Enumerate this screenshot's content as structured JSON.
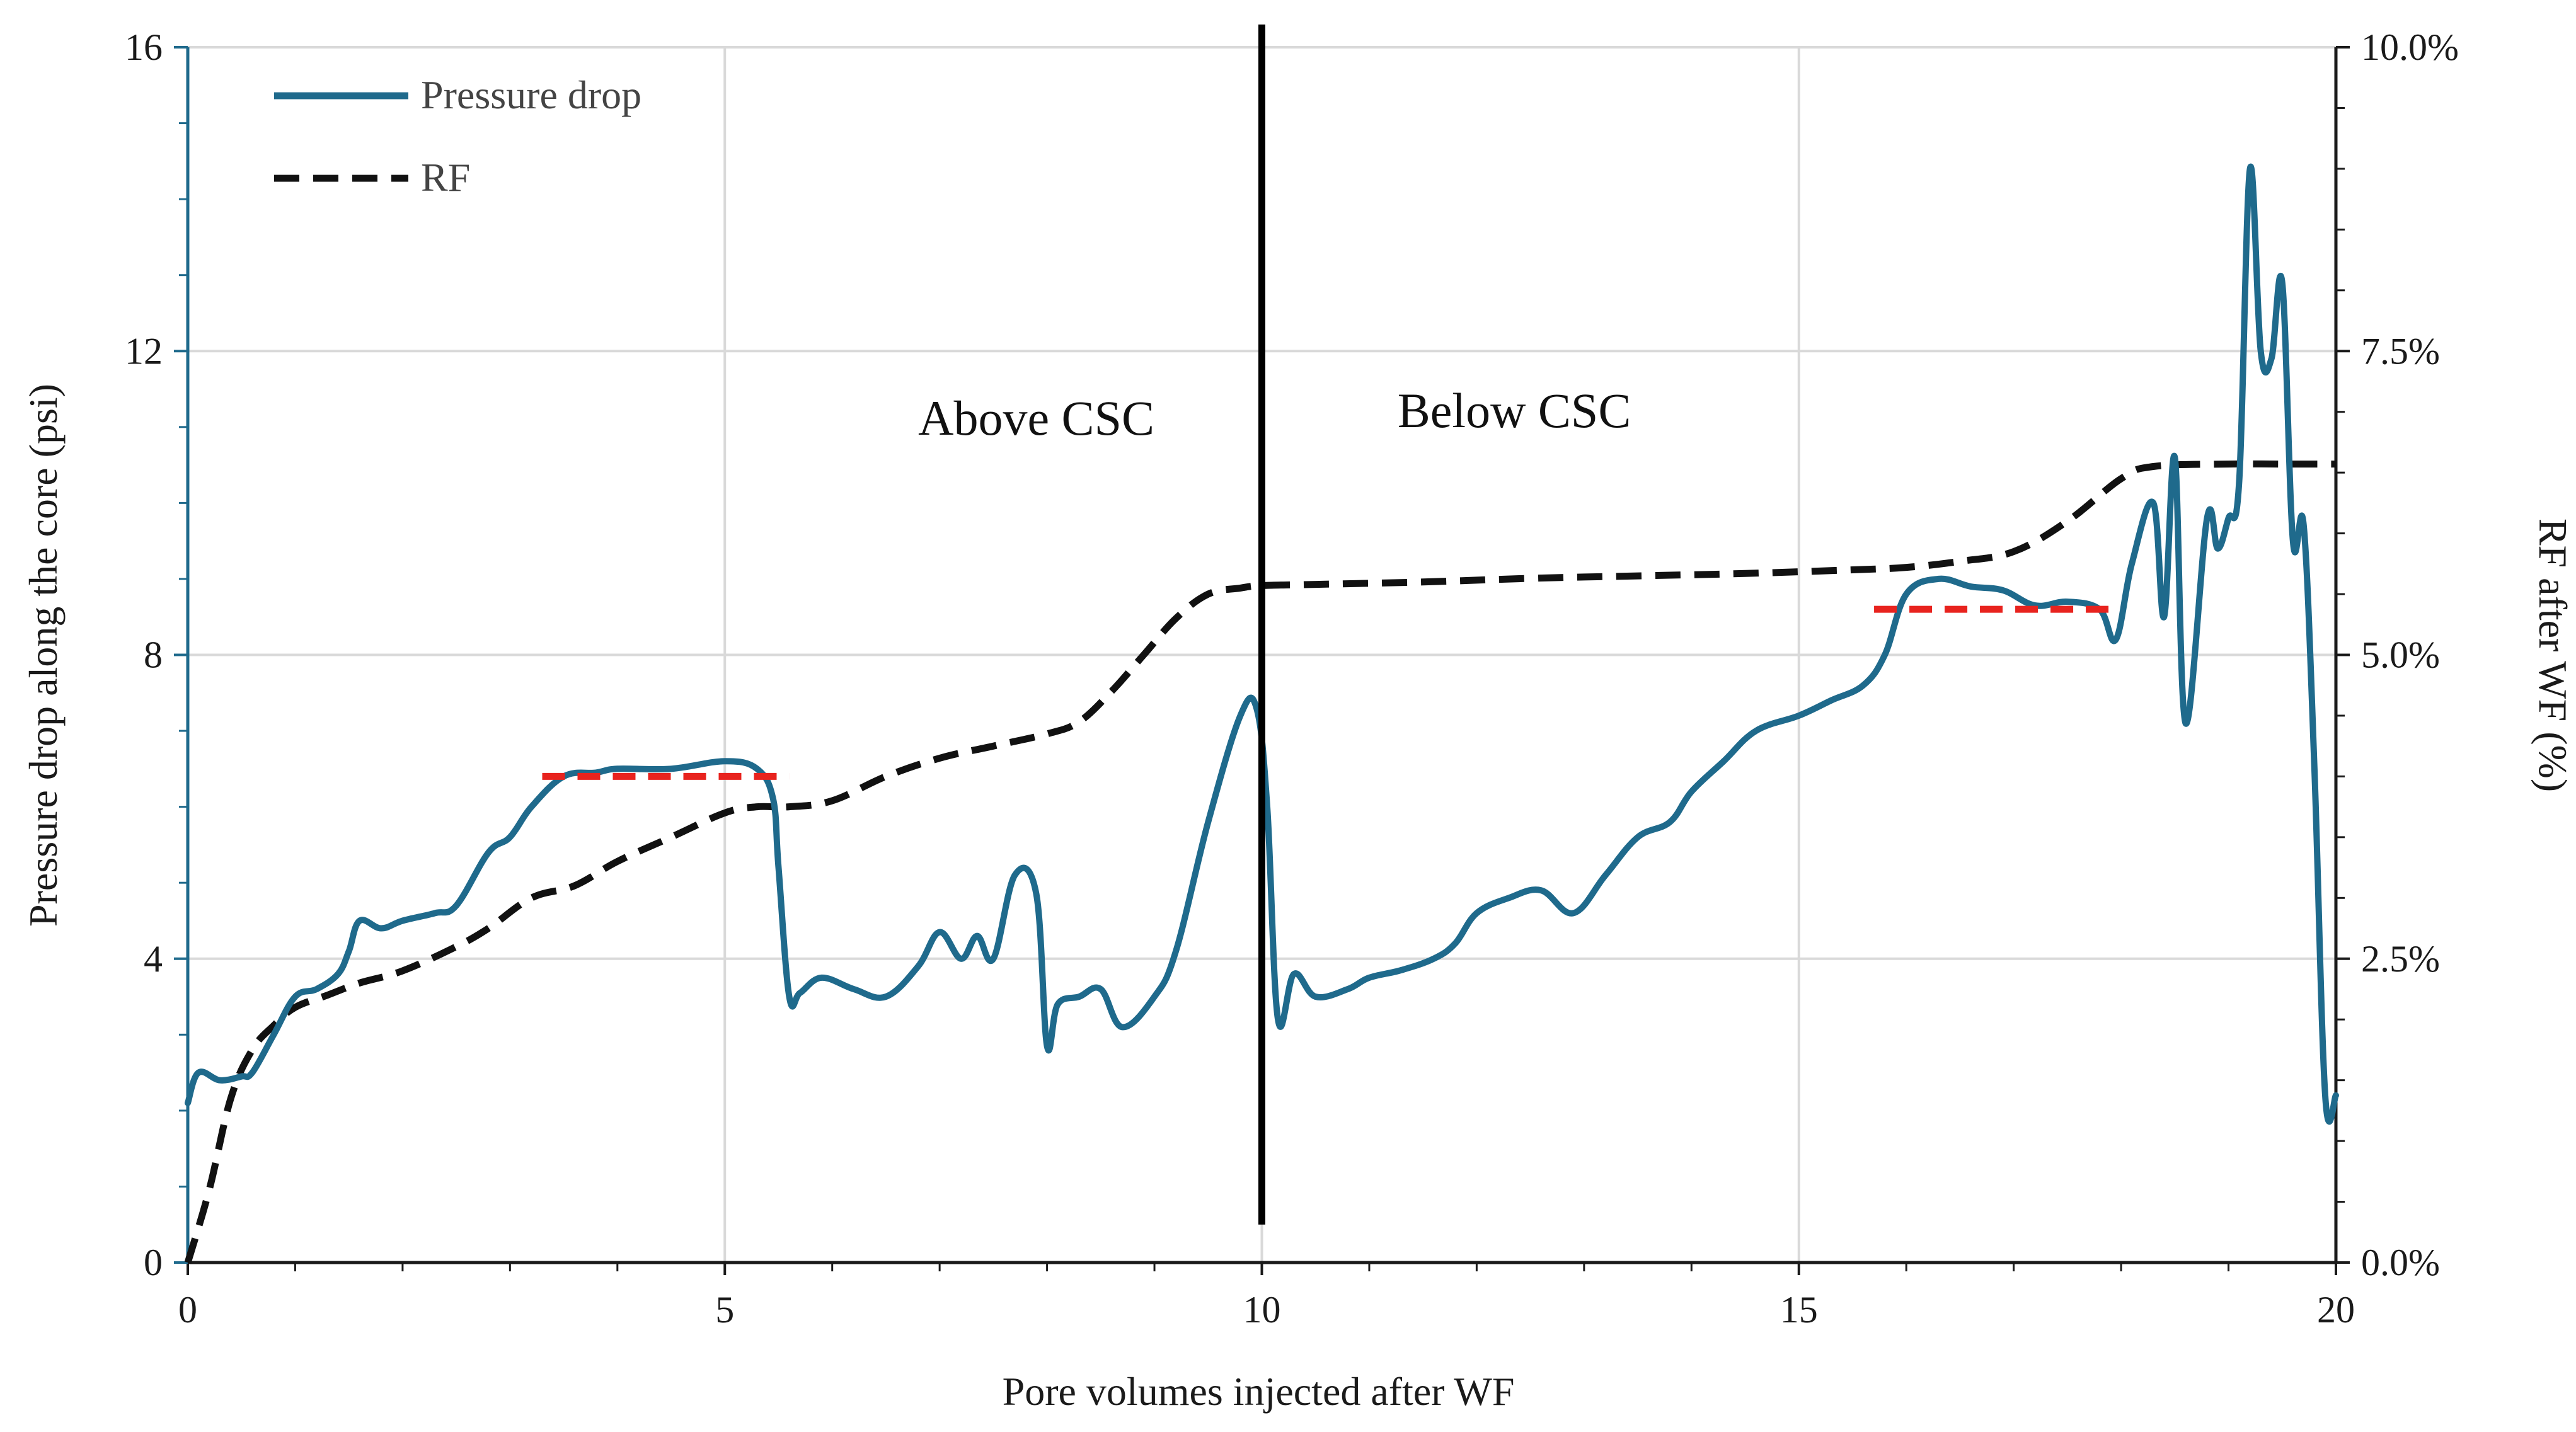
{
  "chart_data": {
    "type": "line",
    "title": "",
    "xlabel": "Pore volumes injected after WF",
    "ylabel_left": "Pressure drop along the core (psi)",
    "ylabel_right": "RF after WF (%)",
    "xlim": [
      0,
      20
    ],
    "ylim_left": [
      0,
      16
    ],
    "ylim_right": [
      0,
      10
    ],
    "x_ticks": [
      0,
      5,
      10,
      15,
      20
    ],
    "y_ticks_left": [
      0,
      4,
      8,
      12,
      16
    ],
    "y_ticks_right": [
      "0.0%",
      "2.5%",
      "5.0%",
      "7.5%",
      "10.0%"
    ],
    "y_ticks_right_values": [
      0,
      2.5,
      5,
      7.5,
      10
    ],
    "grid": true,
    "legend_position": "top-left",
    "colors": {
      "pressure": "#1f6a8c",
      "rf": "#111111",
      "plateau": "#e8231e",
      "divider": "#000000",
      "grid": "#d9d9d9"
    },
    "series": [
      {
        "name": "Pressure drop",
        "axis": "left",
        "style": "solid",
        "x": [
          0,
          0.1,
          0.3,
          0.5,
          0.6,
          0.8,
          1.0,
          1.2,
          1.4,
          1.5,
          1.6,
          1.8,
          2.0,
          2.3,
          2.5,
          2.8,
          3.0,
          3.2,
          3.5,
          3.8,
          4.0,
          4.5,
          5.0,
          5.3,
          5.45,
          5.5,
          5.6,
          5.7,
          5.9,
          6.2,
          6.5,
          6.8,
          7.0,
          7.2,
          7.35,
          7.5,
          7.7,
          7.9,
          8.0,
          8.1,
          8.3,
          8.5,
          8.7,
          9.0,
          9.2,
          9.5,
          9.8,
          9.95,
          10.05,
          10.15,
          10.3,
          10.5,
          10.8,
          11.0,
          11.3,
          11.6,
          11.8,
          12.0,
          12.3,
          12.6,
          12.9,
          13.2,
          13.5,
          13.8,
          14.0,
          14.3,
          14.6,
          15.0,
          15.3,
          15.6,
          15.8,
          16.0,
          16.3,
          16.6,
          16.9,
          17.2,
          17.5,
          17.8,
          17.95,
          18.1,
          18.3,
          18.4,
          18.5,
          18.6,
          18.8,
          18.9,
          19.0,
          19.1,
          19.2,
          19.3,
          19.4,
          19.5,
          19.6,
          19.7,
          19.8,
          19.9,
          20.0
        ],
        "values": [
          2.1,
          2.5,
          2.4,
          2.45,
          2.5,
          3.0,
          3.5,
          3.6,
          3.8,
          4.1,
          4.5,
          4.4,
          4.5,
          4.6,
          4.7,
          5.4,
          5.6,
          6.0,
          6.4,
          6.45,
          6.5,
          6.5,
          6.6,
          6.5,
          6.1,
          5.2,
          3.5,
          3.55,
          3.75,
          3.6,
          3.5,
          3.9,
          4.35,
          4.0,
          4.3,
          4.0,
          5.1,
          4.85,
          2.85,
          3.4,
          3.5,
          3.6,
          3.1,
          3.5,
          4.1,
          5.8,
          7.2,
          7.3,
          6.0,
          3.2,
          3.8,
          3.5,
          3.6,
          3.75,
          3.85,
          4.0,
          4.2,
          4.6,
          4.8,
          4.9,
          4.6,
          5.1,
          5.6,
          5.8,
          6.2,
          6.6,
          7.0,
          7.2,
          7.4,
          7.6,
          8.0,
          8.8,
          9.0,
          8.9,
          8.85,
          8.65,
          8.7,
          8.6,
          8.2,
          9.2,
          10.0,
          8.5,
          10.6,
          7.1,
          9.8,
          9.4,
          9.8,
          10.3,
          14.4,
          12.0,
          11.9,
          12.9,
          9.5,
          9.7,
          6.5,
          2.2,
          2.2
        ]
      },
      {
        "name": "RF",
        "axis": "right",
        "style": "dashed",
        "x": [
          0,
          0.2,
          0.4,
          0.6,
          0.8,
          1.0,
          1.3,
          1.6,
          2.0,
          2.5,
          2.8,
          3.2,
          3.6,
          4.0,
          4.5,
          5.0,
          5.3,
          5.6,
          6.0,
          6.5,
          7.0,
          7.5,
          8.0,
          8.3,
          8.6,
          8.9,
          9.2,
          9.5,
          9.8,
          10.0,
          10.5,
          11.5,
          12.5,
          13.5,
          14.5,
          15.5,
          16.0,
          16.5,
          17.0,
          17.5,
          18.0,
          18.3,
          19.0,
          19.5,
          20.0
        ],
        "values": [
          0.0,
          0.6,
          1.35,
          1.75,
          1.95,
          2.1,
          2.2,
          2.3,
          2.4,
          2.6,
          2.75,
          3.0,
          3.1,
          3.3,
          3.5,
          3.7,
          3.75,
          3.75,
          3.8,
          4.0,
          4.15,
          4.25,
          4.35,
          4.45,
          4.7,
          5.0,
          5.3,
          5.5,
          5.55,
          5.57,
          5.58,
          5.6,
          5.63,
          5.65,
          5.67,
          5.7,
          5.72,
          5.77,
          5.85,
          6.1,
          6.45,
          6.55,
          6.57,
          6.57,
          6.57
        ]
      }
    ],
    "plateau_markers": [
      {
        "x_start": 3.3,
        "x_end": 5.6,
        "value": 6.4
      },
      {
        "x_start": 15.7,
        "x_end": 18.0,
        "value": 8.6
      }
    ],
    "divider_x": 10,
    "divider_range": [
      0.5,
      16.3
    ],
    "annotations": [
      {
        "text": "Above CSC",
        "x": 7.9,
        "y": 10.9
      },
      {
        "text": "Below CSC",
        "x": 12.35,
        "y": 11.0
      }
    ],
    "legend": [
      {
        "label": "Pressure drop",
        "style": "solid"
      },
      {
        "label": "RF",
        "style": "dashed"
      }
    ]
  }
}
